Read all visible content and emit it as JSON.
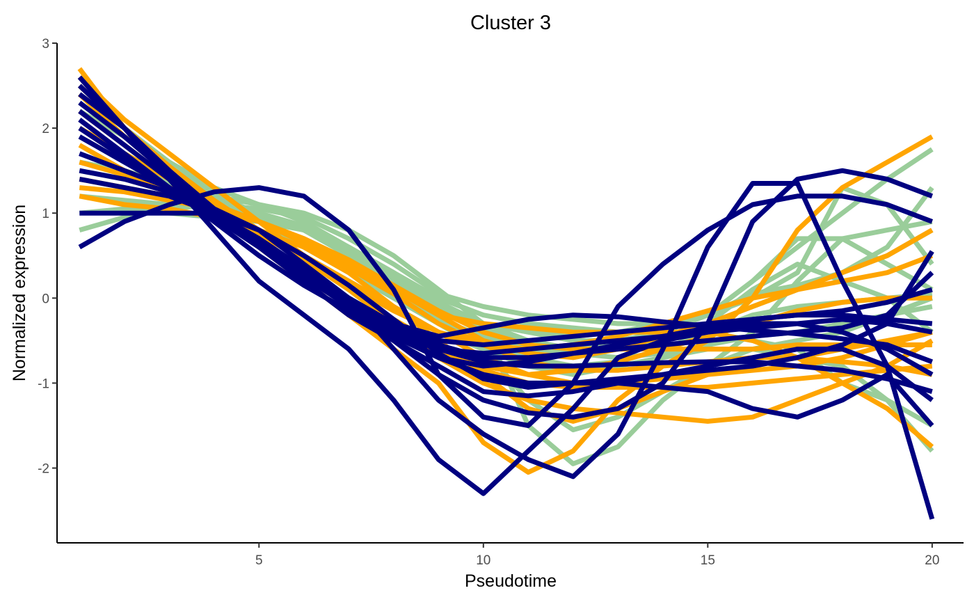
{
  "chart_data": {
    "type": "line",
    "title": "Cluster 3",
    "xlabel": "Pseudotime",
    "ylabel": "Normalized expression",
    "xlim": [
      0.5,
      20.7
    ],
    "ylim": [
      -2.88,
      3.0
    ],
    "xticks": [
      5,
      10,
      15,
      20
    ],
    "xtick_labels": [
      "5",
      "10",
      "15",
      "20"
    ],
    "yticks": [
      -2,
      -1,
      0,
      1,
      2,
      3
    ],
    "ytick_labels": [
      "-2",
      "-1",
      "0",
      "1",
      "2",
      "3"
    ],
    "grid": false,
    "legend": "none",
    "x": [
      1.0,
      2.0,
      3.0,
      4.0,
      5.0,
      6.0,
      7.0,
      8.0,
      9.0,
      10.0,
      11.0,
      12.0,
      13.0,
      14.0,
      15.0,
      16.0,
      17.0,
      18.0,
      19.0,
      20.0
    ],
    "series": [
      {
        "color": "#9ACD9A",
        "values": [
          0.8,
          0.95,
          1.05,
          1.1,
          1.05,
          0.95,
          0.7,
          0.4,
          0.05,
          -0.1,
          -0.2,
          -0.25,
          -0.3,
          -0.3,
          -0.2,
          0.2,
          0.6,
          1.0,
          1.4,
          1.75
        ]
      },
      {
        "color": "#9ACD9A",
        "values": [
          1.5,
          1.4,
          1.3,
          1.2,
          1.1,
          1.0,
          0.8,
          0.5,
          0.1,
          -0.3,
          -1.5,
          -1.95,
          -1.75,
          -1.2,
          -0.8,
          -0.4,
          0.2,
          0.7,
          0.8,
          0.9
        ]
      },
      {
        "color": "#9ACD9A",
        "values": [
          2.5,
          2.0,
          1.6,
          1.2,
          0.9,
          0.6,
          0.3,
          0.0,
          -0.3,
          -0.6,
          -1.2,
          -1.55,
          -1.4,
          -1.1,
          -0.8,
          -0.6,
          -0.5,
          -0.4,
          -0.2,
          0.0
        ]
      },
      {
        "color": "#9ACD9A",
        "values": [
          2.2,
          1.9,
          1.6,
          1.3,
          1.1,
          0.9,
          0.6,
          0.3,
          -0.1,
          -0.4,
          -0.6,
          -0.7,
          -0.6,
          -0.5,
          -0.3,
          0.1,
          0.4,
          0.2,
          0.0,
          -0.4
        ]
      },
      {
        "color": "#9ACD9A",
        "values": [
          1.9,
          1.6,
          1.4,
          1.2,
          1.0,
          0.8,
          0.5,
          0.2,
          -0.1,
          -0.3,
          -0.4,
          -0.45,
          -0.4,
          -0.3,
          -0.2,
          0.0,
          0.3,
          1.3,
          1.1,
          0.4
        ]
      },
      {
        "color": "#9ACD9A",
        "values": [
          1.0,
          1.05,
          1.0,
          0.95,
          0.9,
          0.8,
          0.6,
          0.3,
          0.0,
          -0.2,
          -0.3,
          -0.35,
          -0.4,
          -0.4,
          -0.4,
          -0.5,
          -0.6,
          -1.0,
          -1.2,
          -1.5
        ]
      },
      {
        "color": "#9ACD9A",
        "values": [
          2.3,
          1.9,
          1.5,
          1.1,
          0.8,
          0.5,
          0.2,
          -0.1,
          -0.4,
          -0.6,
          -0.8,
          -0.9,
          -0.8,
          -0.7,
          -0.6,
          -0.6,
          -0.7,
          -0.8,
          -1.2,
          -1.8
        ]
      },
      {
        "color": "#9ACD9A",
        "values": [
          1.6,
          1.5,
          1.35,
          1.2,
          1.0,
          0.8,
          0.5,
          0.2,
          -0.1,
          -0.3,
          -0.4,
          -0.5,
          -0.5,
          -0.4,
          -0.2,
          0.2,
          0.7,
          0.7,
          0.4,
          0.1
        ]
      },
      {
        "color": "#9ACD9A",
        "values": [
          2.0,
          1.7,
          1.4,
          1.15,
          0.9,
          0.65,
          0.35,
          0.05,
          -0.25,
          -0.45,
          -0.6,
          -0.65,
          -0.55,
          -0.4,
          -0.2,
          0.05,
          0.15,
          0.3,
          0.5,
          0.8
        ]
      },
      {
        "color": "#9ACD9A",
        "values": [
          1.2,
          1.15,
          1.1,
          1.05,
          0.95,
          0.8,
          0.55,
          0.25,
          -0.1,
          -0.35,
          -0.55,
          -0.65,
          -0.7,
          -0.65,
          -0.55,
          -0.45,
          -0.4,
          -0.3,
          -0.2,
          -0.1
        ]
      },
      {
        "color": "#9ACD9A",
        "values": [
          2.4,
          2.0,
          1.6,
          1.25,
          0.95,
          0.65,
          0.35,
          0.05,
          -0.25,
          -0.5,
          -0.7,
          -0.8,
          -0.75,
          -0.6,
          -0.4,
          -0.2,
          -0.1,
          -0.05,
          0.0,
          0.05
        ]
      },
      {
        "color": "#9ACD9A",
        "values": [
          1.4,
          1.3,
          1.2,
          1.1,
          1.0,
          0.85,
          0.6,
          0.3,
          -0.05,
          -0.3,
          -0.5,
          -0.6,
          -0.55,
          -0.45,
          -0.3,
          -0.1,
          0.1,
          0.3,
          0.6,
          1.3
        ]
      },
      {
        "color": "#FFA500",
        "values": [
          2.7,
          2.0,
          1.5,
          1.0,
          0.6,
          0.2,
          -0.2,
          -0.6,
          -1.0,
          -1.7,
          -2.05,
          -1.8,
          -1.2,
          -0.8,
          -0.5,
          0.0,
          0.8,
          1.3,
          1.6,
          1.9
        ]
      },
      {
        "color": "#FFA500",
        "values": [
          2.6,
          2.1,
          1.7,
          1.3,
          0.9,
          0.5,
          0.1,
          -0.3,
          -0.7,
          -1.0,
          -1.2,
          -1.3,
          -1.35,
          -1.4,
          -1.45,
          -1.4,
          -1.2,
          -1.0,
          -0.8,
          -0.5
        ]
      },
      {
        "color": "#FFA500",
        "values": [
          1.2,
          1.1,
          1.05,
          0.95,
          0.8,
          0.6,
          0.3,
          -0.1,
          -0.5,
          -0.9,
          -1.3,
          -1.45,
          -1.3,
          -1.1,
          -0.9,
          -0.8,
          -0.7,
          -0.6,
          -0.5,
          -0.4
        ]
      },
      {
        "color": "#FFA500",
        "values": [
          1.8,
          1.5,
          1.3,
          1.1,
          0.9,
          0.7,
          0.4,
          0.1,
          -0.2,
          -0.3,
          -0.35,
          -0.4,
          -0.4,
          -0.4,
          -0.4,
          -0.5,
          -0.7,
          -1.0,
          -1.3,
          -1.75
        ]
      },
      {
        "color": "#FFA500",
        "values": [
          2.2,
          1.8,
          1.4,
          1.0,
          0.6,
          0.3,
          0.0,
          -0.3,
          -0.6,
          -0.85,
          -1.0,
          -1.05,
          -1.05,
          -1.05,
          -1.05,
          -1.0,
          -0.95,
          -0.9,
          -0.85,
          -0.8
        ]
      },
      {
        "color": "#FFA500",
        "values": [
          1.4,
          1.3,
          1.2,
          1.05,
          0.9,
          0.7,
          0.45,
          0.15,
          -0.2,
          -0.5,
          -0.65,
          -0.7,
          -0.6,
          -0.45,
          -0.3,
          -0.1,
          0.1,
          0.3,
          0.5,
          0.8
        ]
      },
      {
        "color": "#FFA500",
        "values": [
          2.4,
          1.9,
          1.5,
          1.1,
          0.75,
          0.45,
          0.15,
          -0.15,
          -0.4,
          -0.55,
          -0.6,
          -0.55,
          -0.45,
          -0.3,
          -0.15,
          0.0,
          0.1,
          0.2,
          0.3,
          0.5
        ]
      },
      {
        "color": "#FFA500",
        "values": [
          1.6,
          1.45,
          1.3,
          1.1,
          0.9,
          0.65,
          0.35,
          0.05,
          -0.3,
          -0.55,
          -0.75,
          -0.85,
          -0.85,
          -0.8,
          -0.75,
          -0.7,
          -0.7,
          -0.75,
          -0.8,
          -0.9
        ]
      },
      {
        "color": "#FFA500",
        "values": [
          2.0,
          1.7,
          1.4,
          1.1,
          0.8,
          0.5,
          0.2,
          -0.1,
          -0.4,
          -0.7,
          -0.9,
          -1.0,
          -1.0,
          -0.95,
          -0.9,
          -0.85,
          -0.8,
          -0.7,
          -0.55,
          -0.4
        ]
      },
      {
        "color": "#FFA500",
        "values": [
          1.3,
          1.25,
          1.15,
          1.05,
          0.9,
          0.7,
          0.45,
          0.15,
          -0.15,
          -0.4,
          -0.55,
          -0.6,
          -0.6,
          -0.6,
          -0.6,
          -0.6,
          -0.55,
          -0.55,
          -0.55,
          -0.55
        ]
      },
      {
        "color": "#FFA500",
        "values": [
          2.5,
          2.0,
          1.55,
          1.15,
          0.8,
          0.45,
          0.1,
          -0.25,
          -0.55,
          -0.8,
          -0.9,
          -0.85,
          -0.75,
          -0.6,
          -0.45,
          -0.3,
          -0.15,
          -0.05,
          0.0,
          0.0
        ]
      },
      {
        "color": "#000080",
        "values": [
          0.6,
          0.9,
          1.1,
          1.25,
          1.3,
          1.2,
          0.8,
          0.1,
          -0.9,
          -1.4,
          -1.5,
          -1.0,
          -0.1,
          0.4,
          0.8,
          1.1,
          1.2,
          1.2,
          1.1,
          0.9
        ]
      },
      {
        "color": "#000080",
        "values": [
          2.6,
          2.0,
          1.4,
          0.8,
          0.2,
          -0.2,
          -0.6,
          -1.2,
          -1.9,
          -2.3,
          -1.8,
          -1.3,
          -0.7,
          -0.5,
          -0.4,
          -0.3,
          -0.3,
          -0.4,
          -0.6,
          -0.9
        ]
      },
      {
        "color": "#000080",
        "values": [
          1.0,
          1.0,
          1.0,
          1.0,
          0.8,
          0.4,
          0.0,
          -0.6,
          -1.2,
          -1.6,
          -1.9,
          -2.1,
          -1.6,
          -0.6,
          0.6,
          1.35,
          1.35,
          0.2,
          -0.8,
          -2.6
        ]
      },
      {
        "color": "#000080",
        "values": [
          1.4,
          1.3,
          1.2,
          1.0,
          0.7,
          0.3,
          -0.1,
          -0.5,
          -0.9,
          -1.2,
          -1.35,
          -1.4,
          -1.3,
          -1.0,
          -0.3,
          0.9,
          1.4,
          1.5,
          1.4,
          1.2
        ]
      },
      {
        "color": "#000080",
        "values": [
          2.4,
          2.0,
          1.5,
          1.0,
          0.6,
          0.2,
          -0.2,
          -0.5,
          -0.8,
          -1.1,
          -1.15,
          -1.1,
          -1.0,
          -0.9,
          -0.8,
          -0.7,
          -0.6,
          -0.6,
          -0.8,
          -1.2
        ]
      },
      {
        "color": "#000080",
        "values": [
          2.1,
          1.7,
          1.3,
          0.9,
          0.5,
          0.15,
          -0.15,
          -0.45,
          -0.7,
          -0.8,
          -0.75,
          -0.65,
          -0.55,
          -0.45,
          -0.35,
          -0.25,
          -0.2,
          -0.2,
          -0.25,
          -0.3
        ]
      },
      {
        "color": "#000080",
        "values": [
          1.7,
          1.5,
          1.3,
          1.0,
          0.7,
          0.35,
          0.0,
          -0.3,
          -0.5,
          -0.55,
          -0.5,
          -0.45,
          -0.4,
          -0.35,
          -0.3,
          -0.25,
          -0.2,
          -0.15,
          -0.05,
          0.1
        ]
      },
      {
        "color": "#000080",
        "values": [
          2.3,
          1.9,
          1.45,
          1.0,
          0.6,
          0.25,
          -0.1,
          -0.4,
          -0.6,
          -0.65,
          -0.6,
          -0.55,
          -0.5,
          -0.45,
          -0.4,
          -0.35,
          -0.3,
          -0.25,
          -0.3,
          -0.4
        ]
      },
      {
        "color": "#000080",
        "values": [
          1.9,
          1.6,
          1.3,
          0.95,
          0.6,
          0.25,
          -0.05,
          -0.35,
          -0.6,
          -0.75,
          -0.8,
          -0.8,
          -0.78,
          -0.76,
          -0.75,
          -0.75,
          -0.8,
          -0.85,
          -0.95,
          -1.1
        ]
      },
      {
        "color": "#000080",
        "values": [
          2.0,
          1.65,
          1.3,
          0.95,
          0.6,
          0.3,
          0.0,
          -0.3,
          -0.45,
          -0.35,
          -0.25,
          -0.2,
          -0.22,
          -0.28,
          -0.33,
          -0.38,
          -0.42,
          -0.48,
          -0.55,
          -0.75
        ]
      },
      {
        "color": "#000080",
        "values": [
          2.2,
          1.8,
          1.4,
          1.0,
          0.65,
          0.3,
          0.0,
          -0.3,
          -0.55,
          -0.7,
          -0.7,
          -0.65,
          -0.6,
          -0.55,
          -0.5,
          -0.45,
          -0.4,
          -0.35,
          -0.2,
          0.3
        ]
      },
      {
        "color": "#000080",
        "values": [
          1.5,
          1.4,
          1.25,
          1.05,
          0.8,
          0.5,
          0.15,
          -0.25,
          -0.65,
          -0.95,
          -1.05,
          -1.0,
          -0.95,
          -0.9,
          -0.85,
          -0.8,
          -0.7,
          -0.55,
          -0.3,
          0.55
        ]
      },
      {
        "color": "#000080",
        "values": [
          2.5,
          2.0,
          1.5,
          1.05,
          0.65,
          0.3,
          -0.05,
          -0.4,
          -0.7,
          -0.9,
          -1.0,
          -1.0,
          -1.0,
          -1.05,
          -1.1,
          -1.3,
          -1.4,
          -1.2,
          -0.9,
          -1.5
        ]
      }
    ]
  }
}
